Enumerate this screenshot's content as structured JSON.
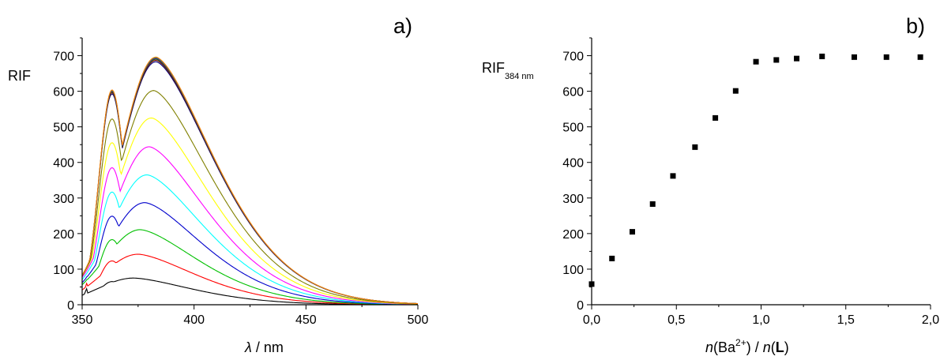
{
  "chart_data": [
    {
      "type": "line",
      "panel_label": "a)",
      "xlabel": {
        "symbol": "λ",
        "rest": " / nm"
      },
      "ylabel": "RIF",
      "xlim": [
        350,
        500
      ],
      "ylim": [
        0,
        750
      ],
      "xticks": [
        350,
        400,
        450,
        500
      ],
      "yticks": [
        0,
        100,
        200,
        300,
        400,
        500,
        600,
        700
      ],
      "x_tick_labels": [
        "350",
        "400",
        "450",
        "500"
      ],
      "y_tick_labels": [
        "0",
        "100",
        "200",
        "300",
        "400",
        "500",
        "600",
        "700"
      ],
      "grid": false,
      "legend": "none",
      "series": [
        {
          "color": "#000000",
          "peak_x": 373,
          "peak_y": 75,
          "start_y": 45
        },
        {
          "color": "#ff0000",
          "peak_x": 375,
          "peak_y": 142,
          "start_y": 60
        },
        {
          "color": "#00c000",
          "peak_x": 376,
          "peak_y": 211,
          "start_y": 70
        },
        {
          "color": "#0000cc",
          "peak_x": 378,
          "peak_y": 287,
          "start_y": 78
        },
        {
          "color": "#00ffff",
          "peak_x": 379,
          "peak_y": 365,
          "start_y": 85
        },
        {
          "color": "#ff00ff",
          "peak_x": 380,
          "peak_y": 444,
          "start_y": 90
        },
        {
          "color": "#ffff00",
          "peak_x": 381,
          "peak_y": 525,
          "start_y": 95
        },
        {
          "color": "#808000",
          "peak_x": 382,
          "peak_y": 602,
          "start_y": 100
        },
        {
          "color": "#000080",
          "peak_x": 383,
          "peak_y": 683,
          "start_y": 105
        },
        {
          "color": "#800000",
          "peak_x": 383,
          "peak_y": 687,
          "start_y": 105
        },
        {
          "color": "#008000",
          "peak_x": 383,
          "peak_y": 690,
          "start_y": 105
        },
        {
          "color": "#800080",
          "peak_x": 383,
          "peak_y": 692,
          "start_y": 105
        },
        {
          "color": "#008080",
          "peak_x": 383,
          "peak_y": 694,
          "start_y": 105
        },
        {
          "color": "#ff8000",
          "peak_x": 383,
          "peak_y": 696,
          "start_y": 105
        }
      ]
    },
    {
      "type": "scatter",
      "panel_label": "b)",
      "xlabel": {
        "n1": "n",
        "ba": "(Ba",
        "sup": "2+",
        "mid": ") / ",
        "n2": "n",
        "paren": "(",
        "bold": "L",
        "end": ")"
      },
      "ylabel": {
        "main": "RIF",
        "sub": "384 nm"
      },
      "xlim": [
        0,
        2.0
      ],
      "ylim": [
        0,
        750
      ],
      "xticks": [
        0,
        0.5,
        1.0,
        1.5,
        2.0
      ],
      "yticks": [
        0,
        100,
        200,
        300,
        400,
        500,
        600,
        700
      ],
      "x_tick_labels": [
        "0,0",
        "0,5",
        "1,0",
        "1,5",
        "2,0"
      ],
      "y_tick_labels": [
        "0",
        "100",
        "200",
        "300",
        "400",
        "500",
        "600",
        "700"
      ],
      "grid": false,
      "legend": "none",
      "marker_color": "#000000",
      "x": [
        0.0,
        0.12,
        0.24,
        0.36,
        0.48,
        0.61,
        0.73,
        0.85,
        0.97,
        1.09,
        1.21,
        1.36,
        1.55,
        1.74,
        1.94
      ],
      "y": [
        58,
        130,
        205,
        283,
        362,
        443,
        525,
        601,
        683,
        688,
        692,
        698,
        696,
        696,
        696
      ]
    }
  ]
}
